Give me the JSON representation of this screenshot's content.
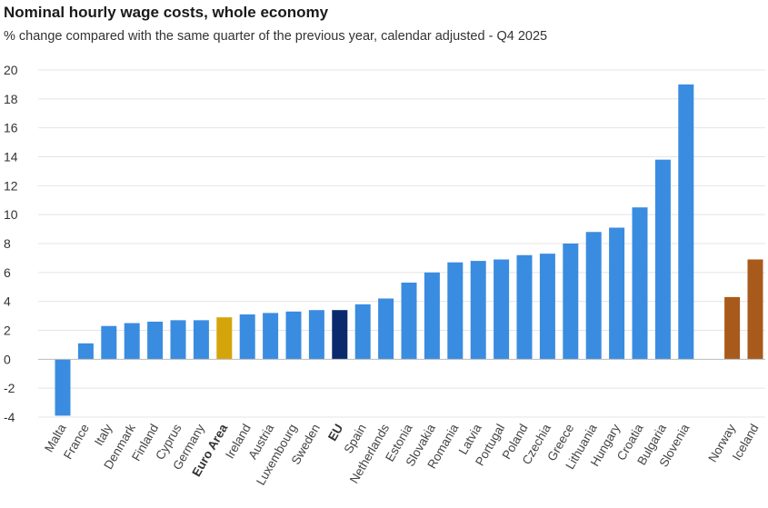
{
  "header": {
    "title": "Nominal hourly wage costs, whole economy",
    "subtitle": "% change compared with the same quarter of the previous year, calendar adjusted - Q4 2025"
  },
  "colors": {
    "country": "#3a8ce0",
    "euro_area": "#d4a50a",
    "eu": "#0b2a6e",
    "non_eu": "#a85a1c",
    "grid": "#e4e4e4",
    "axis": "#bbbbbb"
  },
  "chart_data": {
    "type": "bar",
    "title": "Nominal hourly wage costs, whole economy",
    "subtitle": "% change compared with the same quarter of the previous year, calendar adjusted - Q4 2025",
    "xlabel": "",
    "ylabel": "",
    "ylim": [
      -4,
      20
    ],
    "yticks": [
      -4,
      -2,
      0,
      2,
      4,
      6,
      8,
      10,
      12,
      14,
      16,
      18,
      20
    ],
    "grid": true,
    "categories": [
      "Malta",
      "France",
      "Italy",
      "Denmark",
      "Finland",
      "Cyprus",
      "Germany",
      "Euro Area",
      "Ireland",
      "Austria",
      "Luxembourg",
      "Sweden",
      "EU",
      "Spain",
      "Netherlands",
      "Estonia",
      "Slovakia",
      "Romania",
      "Latvia",
      "Portugal",
      "Poland",
      "Czechia",
      "Greece",
      "Lithuania",
      "Hungary",
      "Croatia",
      "Bulgaria",
      "Slovenia",
      "",
      "Norway",
      "Iceland"
    ],
    "values": [
      -3.9,
      1.1,
      2.3,
      2.5,
      2.6,
      2.7,
      2.7,
      2.9,
      3.1,
      3.2,
      3.3,
      3.4,
      3.4,
      3.8,
      4.2,
      5.3,
      6.0,
      6.7,
      6.8,
      6.9,
      7.2,
      7.3,
      8.0,
      8.8,
      9.1,
      10.5,
      13.8,
      19.0,
      null,
      4.3,
      6.9
    ],
    "groups": [
      "country",
      "country",
      "country",
      "country",
      "country",
      "country",
      "country",
      "euro_area",
      "country",
      "country",
      "country",
      "country",
      "eu",
      "country",
      "country",
      "country",
      "country",
      "country",
      "country",
      "country",
      "country",
      "country",
      "country",
      "country",
      "country",
      "country",
      "country",
      "country",
      "gap",
      "non_eu",
      "non_eu"
    ]
  }
}
